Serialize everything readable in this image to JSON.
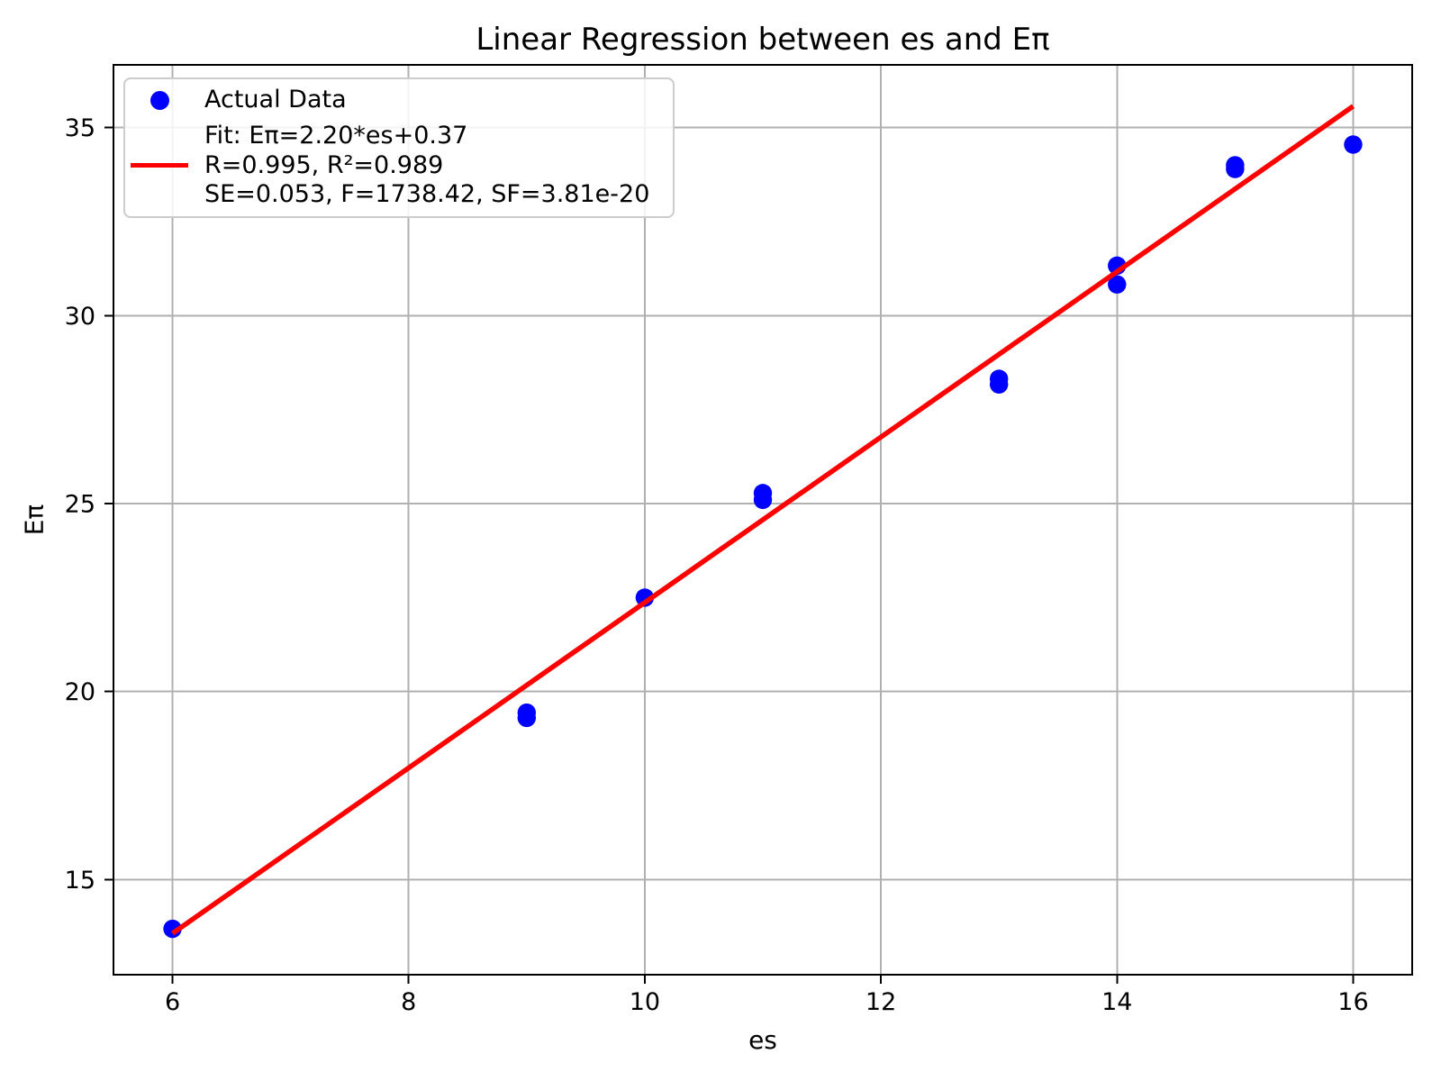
{
  "chart_data": {
    "type": "scatter",
    "title": "Linear Regression between es and Eπ",
    "xlabel": "es",
    "ylabel": "Eπ",
    "xlim": [
      5.5,
      16.5
    ],
    "ylim": [
      12.47,
      36.67
    ],
    "xticks": [
      6,
      8,
      10,
      12,
      14,
      16
    ],
    "yticks": [
      15,
      20,
      25,
      30,
      35
    ],
    "grid": true,
    "legend_position": "upper-left",
    "series": [
      {
        "name": "Actual Data",
        "type": "scatter",
        "color": "#0000FF",
        "points": [
          [
            6,
            13.69
          ],
          [
            9,
            19.3
          ],
          [
            9,
            19.44
          ],
          [
            10,
            22.5
          ],
          [
            11,
            25.1
          ],
          [
            11,
            25.28
          ],
          [
            13,
            28.17
          ],
          [
            13,
            28.32
          ],
          [
            14,
            30.83
          ],
          [
            14,
            31.33
          ],
          [
            15,
            33.9
          ],
          [
            15,
            34.0
          ],
          [
            16,
            34.55
          ]
        ]
      },
      {
        "name": "Fit",
        "type": "line",
        "color": "#FF0000",
        "slope": 2.2,
        "intercept": 0.37,
        "x_range": [
          6,
          16
        ]
      }
    ],
    "fit_stats": {
      "equation": "Eπ=2.20*es+0.37",
      "R": 0.995,
      "R2": 0.989,
      "SE": 0.053,
      "F": 1738.42,
      "SF": "3.81e-20"
    }
  },
  "legend": {
    "entries": [
      {
        "label": "Actual Data",
        "marker": "dot",
        "color": "#0000FF"
      },
      {
        "label_lines": [
          "Fit: Eπ=2.20*es+0.37",
          "R=0.995, R²=0.989",
          "SE=0.053, F=1738.42, SF=3.81e-20"
        ],
        "marker": "line",
        "color": "#FF0000"
      }
    ]
  },
  "colors": {
    "scatter": "#0000FF",
    "fit_line": "#FF0000",
    "grid": "#B0B0B0",
    "spine": "#000000",
    "tick_text": "#000000",
    "legend_border": "#CCCCCC",
    "background": "#FFFFFF"
  }
}
